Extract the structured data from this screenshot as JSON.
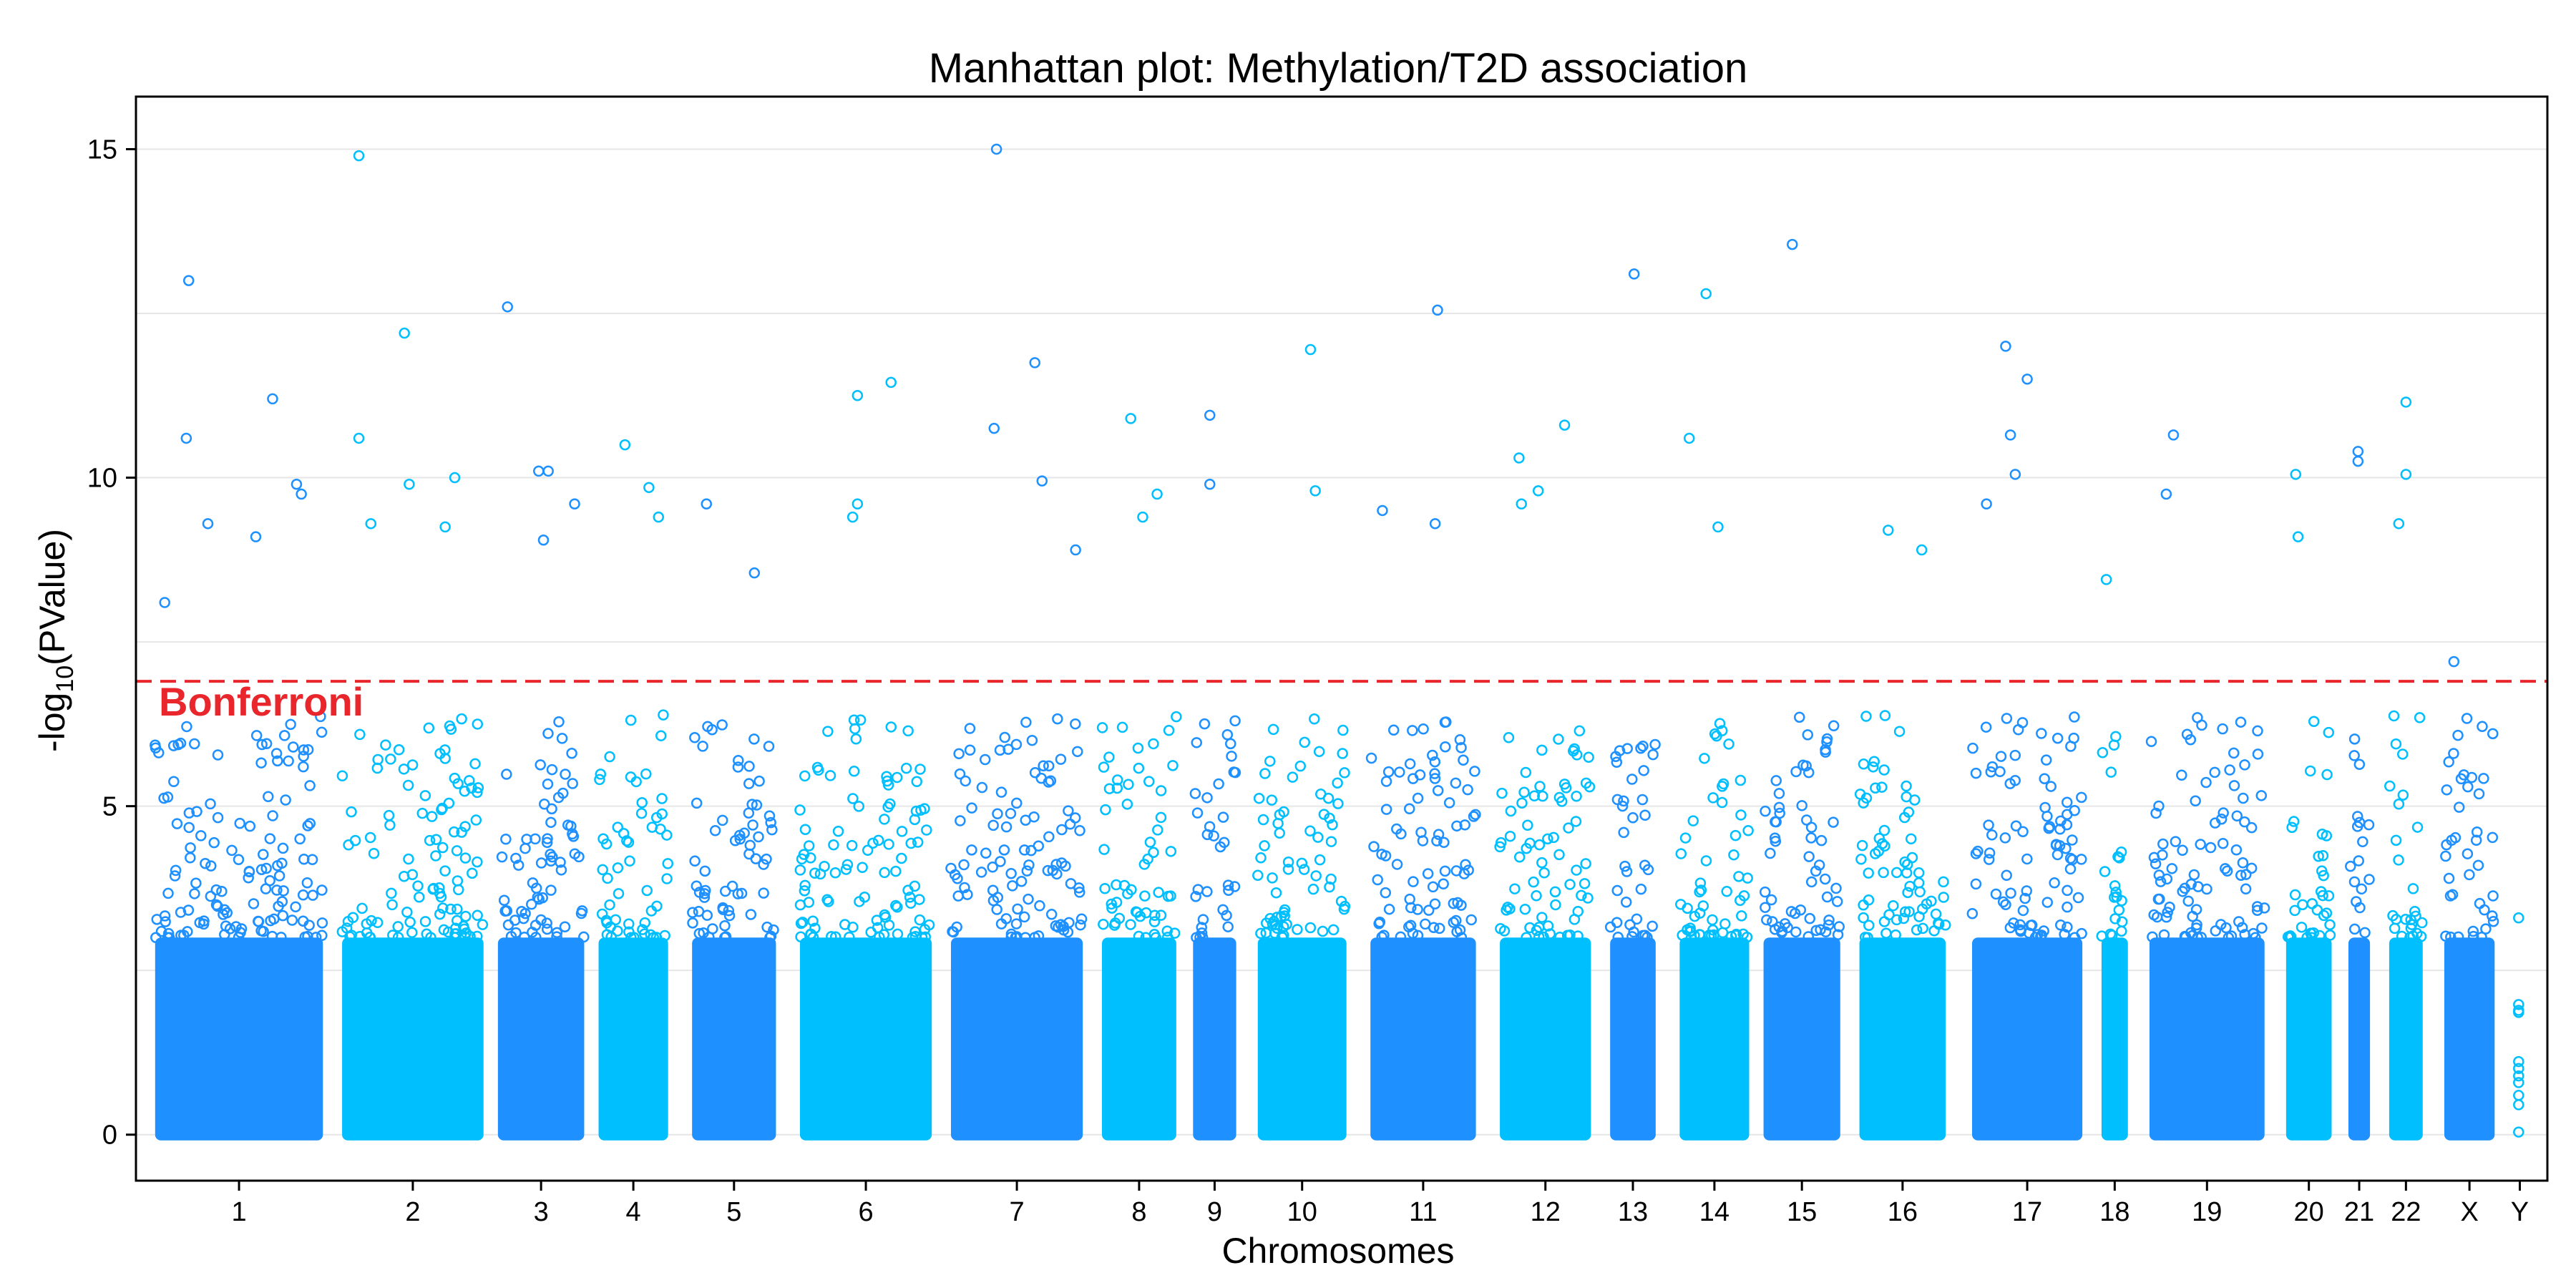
{
  "chart_data": {
    "type": "scatter",
    "title": "Manhattan plot: Methylation/T2D association",
    "xlabel": "Chromosomes",
    "ylabel_prefix": "-log",
    "ylabel_sub": "10",
    "ylabel_suffix": "(PValue)",
    "ylim": [
      -0.7,
      15.8
    ],
    "y_ticks": [
      0,
      5,
      10,
      15
    ],
    "grid": "horizontal light gray gridlines",
    "colors": [
      "#1E90FF",
      "#00BFFF"
    ],
    "threshold": {
      "label": "Bonferroni",
      "value": 6.9,
      "color": "#E8262C"
    },
    "chromosomes": [
      {
        "label": "1",
        "span": [
          0.0,
          3.5
        ]
      },
      {
        "label": "2",
        "span": [
          3.9,
          6.85
        ]
      },
      {
        "label": "3",
        "span": [
          7.15,
          8.95
        ]
      },
      {
        "label": "4",
        "span": [
          9.25,
          10.7
        ]
      },
      {
        "label": "5",
        "span": [
          11.2,
          12.95
        ]
      },
      {
        "label": "6",
        "span": [
          13.45,
          16.2
        ]
      },
      {
        "label": "7",
        "span": [
          16.6,
          19.35
        ]
      },
      {
        "label": "8",
        "span": [
          19.75,
          21.3
        ]
      },
      {
        "label": "9",
        "span": [
          21.65,
          22.55
        ]
      },
      {
        "label": "10",
        "span": [
          23.0,
          24.85
        ]
      },
      {
        "label": "11",
        "span": [
          25.35,
          27.55
        ]
      },
      {
        "label": "12",
        "span": [
          28.05,
          29.95
        ]
      },
      {
        "label": "13",
        "span": [
          30.35,
          31.3
        ]
      },
      {
        "label": "14",
        "span": [
          31.8,
          33.25
        ]
      },
      {
        "label": "15",
        "span": [
          33.55,
          35.15
        ]
      },
      {
        "label": "16",
        "span": [
          35.55,
          37.35
        ]
      },
      {
        "label": "17",
        "span": [
          37.9,
          40.2
        ]
      },
      {
        "label": "18",
        "span": [
          40.6,
          41.15
        ]
      },
      {
        "label": "19",
        "span": [
          41.6,
          44.0
        ]
      },
      {
        "label": "20",
        "span": [
          44.45,
          45.4
        ]
      },
      {
        "label": "21",
        "span": [
          45.75,
          46.2
        ]
      },
      {
        "label": "22",
        "span": [
          46.6,
          47.3
        ]
      },
      {
        "label": "X",
        "span": [
          47.75,
          48.8
        ]
      },
      {
        "label": "Y",
        "span": [
          49.2,
          49.45
        ]
      }
    ],
    "xlim": [
      -0.4,
      49.9
    ],
    "top_hits": [
      {
        "chr": "1",
        "x": 0.7,
        "y": 13.0
      },
      {
        "chr": "1",
        "x": 0.65,
        "y": 10.6
      },
      {
        "chr": "1",
        "x": 2.45,
        "y": 11.2
      },
      {
        "chr": "1",
        "x": 2.95,
        "y": 9.9
      },
      {
        "chr": "1",
        "x": 3.05,
        "y": 9.75
      },
      {
        "chr": "1",
        "x": 1.1,
        "y": 9.3
      },
      {
        "chr": "1",
        "x": 2.1,
        "y": 9.1
      },
      {
        "chr": "1",
        "x": 0.2,
        "y": 8.1
      },
      {
        "chr": "2",
        "x": 4.25,
        "y": 14.9
      },
      {
        "chr": "2",
        "x": 5.2,
        "y": 12.2
      },
      {
        "chr": "2",
        "x": 4.25,
        "y": 10.6
      },
      {
        "chr": "2",
        "x": 6.25,
        "y": 10.0
      },
      {
        "chr": "2",
        "x": 5.3,
        "y": 9.9
      },
      {
        "chr": "2",
        "x": 4.5,
        "y": 9.3
      },
      {
        "chr": "2",
        "x": 6.05,
        "y": 9.25
      },
      {
        "chr": "3",
        "x": 7.35,
        "y": 12.6
      },
      {
        "chr": "3",
        "x": 8.0,
        "y": 10.1
      },
      {
        "chr": "3",
        "x": 8.2,
        "y": 10.1
      },
      {
        "chr": "3",
        "x": 8.75,
        "y": 9.6
      },
      {
        "chr": "3",
        "x": 8.1,
        "y": 9.05
      },
      {
        "chr": "4",
        "x": 9.8,
        "y": 10.5
      },
      {
        "chr": "4",
        "x": 10.3,
        "y": 9.85
      },
      {
        "chr": "4",
        "x": 10.5,
        "y": 9.4
      },
      {
        "chr": "5",
        "x": 11.5,
        "y": 9.6
      },
      {
        "chr": "5",
        "x": 12.5,
        "y": 8.55
      },
      {
        "chr": "6",
        "x": 14.65,
        "y": 11.25
      },
      {
        "chr": "6",
        "x": 15.35,
        "y": 11.45
      },
      {
        "chr": "6",
        "x": 14.65,
        "y": 9.6
      },
      {
        "chr": "6",
        "x": 14.55,
        "y": 9.4
      },
      {
        "chr": "7",
        "x": 17.55,
        "y": 15.0
      },
      {
        "chr": "7",
        "x": 18.35,
        "y": 11.75
      },
      {
        "chr": "7",
        "x": 17.5,
        "y": 10.75
      },
      {
        "chr": "7",
        "x": 18.5,
        "y": 9.95
      },
      {
        "chr": "7",
        "x": 19.2,
        "y": 8.9
      },
      {
        "chr": "8",
        "x": 20.35,
        "y": 10.9
      },
      {
        "chr": "8",
        "x": 20.9,
        "y": 9.75
      },
      {
        "chr": "8",
        "x": 20.6,
        "y": 9.4
      },
      {
        "chr": "9",
        "x": 22.0,
        "y": 10.95
      },
      {
        "chr": "9",
        "x": 22.0,
        "y": 9.9
      },
      {
        "chr": "10",
        "x": 24.1,
        "y": 11.95
      },
      {
        "chr": "10",
        "x": 24.2,
        "y": 9.8
      },
      {
        "chr": "11",
        "x": 26.75,
        "y": 12.55
      },
      {
        "chr": "11",
        "x": 25.6,
        "y": 9.5
      },
      {
        "chr": "11",
        "x": 26.7,
        "y": 9.3
      },
      {
        "chr": "12",
        "x": 28.45,
        "y": 10.3
      },
      {
        "chr": "12",
        "x": 29.4,
        "y": 10.8
      },
      {
        "chr": "12",
        "x": 28.85,
        "y": 9.8
      },
      {
        "chr": "12",
        "x": 28.5,
        "y": 9.6
      },
      {
        "chr": "13",
        "x": 30.85,
        "y": 13.1
      },
      {
        "chr": "14",
        "x": 32.35,
        "y": 12.8
      },
      {
        "chr": "14",
        "x": 32.0,
        "y": 10.6
      },
      {
        "chr": "14",
        "x": 32.6,
        "y": 9.25
      },
      {
        "chr": "15",
        "x": 34.15,
        "y": 13.55
      },
      {
        "chr": "16",
        "x": 36.15,
        "y": 9.2
      },
      {
        "chr": "16",
        "x": 36.85,
        "y": 8.9
      },
      {
        "chr": "17",
        "x": 38.6,
        "y": 12.0
      },
      {
        "chr": "17",
        "x": 39.05,
        "y": 11.5
      },
      {
        "chr": "17",
        "x": 38.7,
        "y": 10.65
      },
      {
        "chr": "17",
        "x": 38.8,
        "y": 10.05
      },
      {
        "chr": "17",
        "x": 38.2,
        "y": 9.6
      },
      {
        "chr": "18",
        "x": 40.7,
        "y": 8.45
      },
      {
        "chr": "19",
        "x": 42.1,
        "y": 10.65
      },
      {
        "chr": "19",
        "x": 41.95,
        "y": 9.75
      },
      {
        "chr": "20",
        "x": 44.65,
        "y": 10.05
      },
      {
        "chr": "20",
        "x": 44.7,
        "y": 9.1
      },
      {
        "chr": "21",
        "x": 45.95,
        "y": 10.4
      },
      {
        "chr": "21",
        "x": 45.95,
        "y": 10.25
      },
      {
        "chr": "22",
        "x": 46.95,
        "y": 11.15
      },
      {
        "chr": "22",
        "x": 46.95,
        "y": 10.05
      },
      {
        "chr": "22",
        "x": 46.8,
        "y": 9.3
      },
      {
        "chr": "X",
        "x": 47.95,
        "y": 7.2
      },
      {
        "chr": "Y",
        "x": 49.3,
        "y": 3.3
      }
    ]
  }
}
